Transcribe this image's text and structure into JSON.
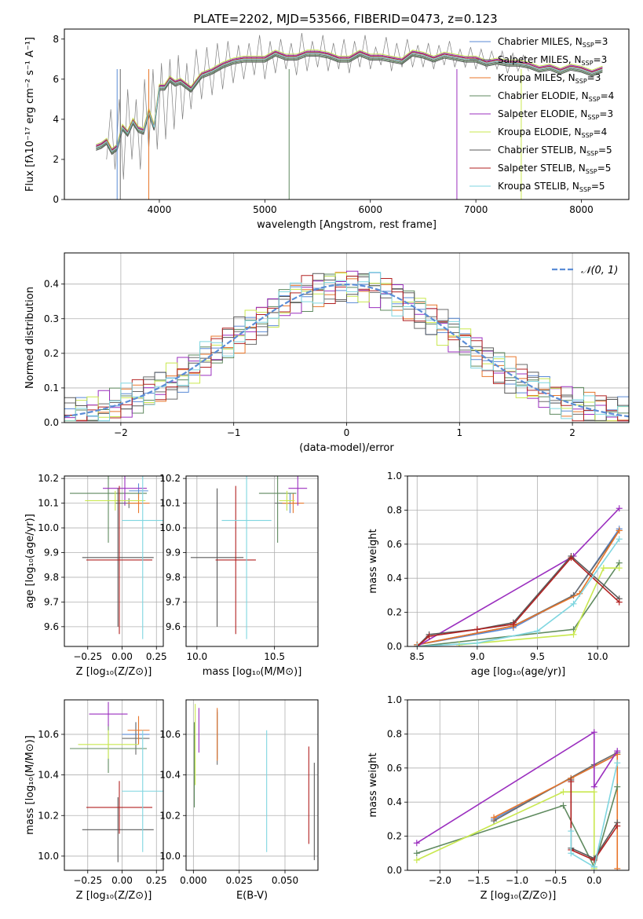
{
  "figure_title": "PLATE=2202, MJD=53566, FIBERID=0473, z=0.123",
  "colors": {
    "Chabrier MILES": "#5a8ad6",
    "Salpeter MILES": "#6b6b6b",
    "Kroupa MILES": "#e8762a",
    "Chabrier ELODIE": "#5f8a5f",
    "Salpeter ELODIE": "#9b2fbf",
    "Kroupa ELODIE": "#c9e84f",
    "Chabrier STELIB": "#5a5a5a",
    "Salpeter STELIB": "#b22222",
    "Kroupa STELIB": "#7fd6e0",
    "normal": "#5b8dd6",
    "grid": "#b0b0b0"
  },
  "chart_data": [
    {
      "id": "spectrum",
      "type": "line",
      "xlabel": "wavelength [Angstrom, rest frame]",
      "ylabel": "Flux [fλ10⁻¹⁷ erg cm⁻² s⁻¹ A⁻¹]",
      "xlim": [
        3100,
        8450
      ],
      "ylim": [
        0,
        8.5
      ],
      "xticks": [
        "4000",
        "5000",
        "6000",
        "7000",
        "8000"
      ],
      "yticks": [
        "0",
        "2",
        "4",
        "6",
        "8"
      ],
      "grid": false,
      "legend_position": "right",
      "data_x": [
        3400,
        3450,
        3500,
        3550,
        3600,
        3650,
        3700,
        3750,
        3800,
        3850,
        3900,
        3950,
        4000,
        4050,
        4100,
        4150,
        4200,
        4250,
        4300,
        4400,
        4500,
        4600,
        4700,
        4800,
        4900,
        5000,
        5100,
        5200,
        5300,
        5400,
        5500,
        5600,
        5700,
        5800,
        5900,
        6000,
        6100,
        6200,
        6300,
        6400,
        6500,
        6600,
        6700,
        6800,
        6900,
        7000,
        7100,
        7200,
        7300,
        7400,
        7500,
        7600,
        7700,
        7800,
        7900,
        8000,
        8100,
        8200
      ],
      "data_y": [
        2.6,
        2.7,
        2.9,
        2.4,
        2.6,
        3.6,
        3.3,
        3.9,
        3.5,
        3.4,
        4.4,
        3.6,
        5.6,
        5.6,
        6.0,
        5.8,
        5.9,
        5.7,
        5.5,
        6.2,
        6.4,
        6.7,
        6.9,
        7.0,
        7.0,
        7.0,
        7.3,
        7.1,
        7.1,
        7.3,
        7.3,
        7.2,
        7.0,
        7.0,
        7.3,
        7.1,
        7.1,
        7.0,
        6.9,
        7.3,
        7.2,
        7.0,
        7.2,
        7.1,
        7.0,
        7.0,
        6.8,
        6.9,
        6.8,
        6.8,
        6.7,
        6.5,
        6.6,
        6.4,
        6.6,
        6.5,
        6.3,
        6.5
      ],
      "noise_x": [
        3500,
        3540,
        3580,
        3620,
        3660,
        3700,
        3740,
        3780,
        3820,
        3860,
        3900,
        3940,
        3980,
        4020,
        4060,
        4100,
        4140,
        4180,
        4220,
        4260,
        4300,
        4350,
        4400,
        4450,
        4500,
        4550,
        4600,
        4650,
        4700,
        4750,
        4800,
        4850,
        4900,
        4950,
        5000,
        5050,
        5100,
        5150,
        5200,
        5250,
        5300,
        5350,
        5400,
        5450,
        5500,
        5550,
        5600,
        5650,
        5700,
        5750,
        5800,
        5850,
        5900,
        5950,
        6000,
        6050,
        6100,
        6150,
        6200,
        6250,
        6300,
        6350,
        6400,
        6450,
        6500,
        6550,
        6600,
        6650,
        6700,
        6750,
        6800,
        6850,
        6900,
        6950,
        7000,
        7050,
        7100,
        7150,
        7200,
        7250,
        7300,
        7350,
        7400,
        7450,
        7500
      ],
      "noise_y": [
        2.0,
        4.5,
        1.5,
        5.0,
        1.0,
        5.5,
        2.0,
        5.0,
        1.5,
        6.0,
        2.5,
        6.5,
        2.5,
        6.8,
        3.0,
        7.0,
        3.5,
        7.2,
        4.0,
        6.8,
        4.5,
        7.5,
        5.0,
        7.6,
        5.2,
        7.8,
        5.5,
        7.9,
        5.8,
        7.7,
        6.0,
        7.8,
        6.2,
        8.2,
        6.0,
        7.9,
        6.3,
        8.0,
        6.5,
        7.8,
        6.2,
        8.3,
        6.4,
        7.9,
        6.6,
        8.2,
        6.4,
        7.8,
        6.5,
        8.0,
        6.3,
        7.9,
        6.6,
        8.2,
        6.5,
        7.6,
        6.7,
        8.1,
        6.4,
        7.8,
        6.6,
        8.0,
        6.6,
        7.7,
        6.6,
        7.8,
        6.5,
        7.7,
        6.7,
        7.9,
        6.6,
        7.5,
        6.6,
        7.6,
        6.5,
        7.5,
        6.5,
        7.4,
        6.5,
        7.4,
        6.3,
        7.3,
        6.4,
        7.2,
        6.4
      ],
      "glitch_x": [
        3600,
        3630,
        3900,
        5230,
        6820,
        7430
      ],
      "series": [
        {
          "name": "Chabrier MILES, N_SSP=3",
          "color_key": "Chabrier MILES",
          "offset": 0.05
        },
        {
          "name": "Salpeter MILES, N_SSP=3",
          "color_key": "Salpeter MILES",
          "offset": -0.05
        },
        {
          "name": "Kroupa MILES, N_SSP=3",
          "color_key": "Kroupa MILES",
          "offset": 0.0
        },
        {
          "name": "Chabrier ELODIE, N_SSP=4",
          "color_key": "Chabrier ELODIE",
          "offset": -0.1
        },
        {
          "name": "Salpeter ELODIE, N_SSP=3",
          "color_key": "Salpeter ELODIE",
          "offset": 0.1
        },
        {
          "name": "Kroupa ELODIE, N_SSP=4",
          "color_key": "Kroupa ELODIE",
          "offset": 0.15
        },
        {
          "name": "Chabrier STELIB, N_SSP=5",
          "color_key": "Chabrier STELIB",
          "offset": -0.15
        },
        {
          "name": "Salpeter STELIB, N_SSP=5",
          "color_key": "Salpeter STELIB",
          "offset": 0.05
        },
        {
          "name": "Kroupa STELIB, N_SSP=5",
          "color_key": "Kroupa STELIB",
          "offset": 0.0
        }
      ]
    },
    {
      "id": "residuals",
      "type": "bar",
      "xlabel": "(data-model)/error",
      "ylabel": "Normed distribution",
      "xlim": [
        -2.5,
        2.5
      ],
      "ylim": [
        0,
        0.49
      ],
      "xticks": [
        "−2",
        "−1",
        "0",
        "1",
        "2"
      ],
      "yticks": [
        "0.0",
        "0.1",
        "0.2",
        "0.3",
        "0.4"
      ],
      "grid": true,
      "legend_position": "top-right",
      "legend_label": "𝒩(0, 1)",
      "bin_width": 0.1,
      "bin_start": -2.5
    },
    {
      "id": "age-vs-Z",
      "type": "scatter",
      "xlabel": "Z [log₁₀(Z/Z⊙)]",
      "ylabel": "age  [log₁₀(age/yr)]",
      "xlim": [
        -0.42,
        0.3
      ],
      "ylim": [
        9.52,
        10.21
      ],
      "xticks": [
        "−0.25",
        "0.00",
        "0.25"
      ],
      "yticks": [
        "9.6",
        "9.7",
        "9.8",
        "9.9",
        "10.0",
        "10.1",
        "10.2"
      ],
      "grid": true,
      "points": [
        {
          "c": "Chabrier MILES",
          "x": 0.12,
          "xe": 0.07,
          "y": 10.15,
          "ye": 0.03
        },
        {
          "c": "Salpeter MILES",
          "x": 0.05,
          "xe": 0.1,
          "y": 10.1,
          "ye": 0.02
        },
        {
          "c": "Kroupa MILES",
          "x": 0.12,
          "xe": 0.08,
          "y": 10.1,
          "ye": 0.04
        },
        {
          "c": "Chabrier ELODIE",
          "x": -0.1,
          "xe": 0.28,
          "y": 10.14,
          "ye": 0.2
        },
        {
          "c": "Salpeter ELODIE",
          "x": 0.02,
          "xe": 0.16,
          "y": 10.16,
          "ye": 0.07
        },
        {
          "c": "Kroupa ELODIE",
          "x": -0.05,
          "xe": 0.22,
          "y": 10.11,
          "ye": 0.04
        },
        {
          "c": "Chabrier STELIB",
          "x": -0.03,
          "xe": 0.26,
          "y": 9.88,
          "ye": 0.28
        },
        {
          "c": "Salpeter STELIB",
          "x": -0.02,
          "xe": 0.24,
          "y": 9.87,
          "ye": 0.3
        },
        {
          "c": "Kroupa STELIB",
          "x": 0.15,
          "xe": 0.15,
          "y": 10.03,
          "ye": 0.48
        }
      ]
    },
    {
      "id": "age-vs-mass",
      "type": "scatter",
      "xlabel": "mass [log₁₀(M/M⊙)]",
      "ylabel": "",
      "xlim": [
        9.93,
        10.78
      ],
      "ylim": [
        9.52,
        10.21
      ],
      "xticks": [
        "10.0",
        "10.5"
      ],
      "yticks": [
        "9.6",
        "9.7",
        "9.8",
        "9.9",
        "10.0",
        "10.1",
        "10.2"
      ],
      "grid": true,
      "points": [
        {
          "c": "Chabrier MILES",
          "x": 10.6,
          "xe": 0.06,
          "y": 10.1,
          "ye": 0.04
        },
        {
          "c": "Salpeter MILES",
          "x": 10.58,
          "xe": 0.08,
          "y": 10.1,
          "ye": 0.03
        },
        {
          "c": "Kroupa MILES",
          "x": 10.62,
          "xe": 0.07,
          "y": 10.1,
          "ye": 0.04
        },
        {
          "c": "Chabrier ELODIE",
          "x": 10.52,
          "xe": 0.12,
          "y": 10.14,
          "ye": 0.2
        },
        {
          "c": "Salpeter ELODIE",
          "x": 10.65,
          "xe": 0.06,
          "y": 10.16,
          "ye": 0.07
        },
        {
          "c": "Kroupa ELODIE",
          "x": 10.58,
          "xe": 0.05,
          "y": 10.11,
          "ye": 0.04
        },
        {
          "c": "Chabrier STELIB",
          "x": 10.13,
          "xe": 0.17,
          "y": 9.88,
          "ye": 0.28
        },
        {
          "c": "Salpeter STELIB",
          "x": 10.25,
          "xe": 0.13,
          "y": 9.87,
          "ye": 0.3
        },
        {
          "c": "Kroupa STELIB",
          "x": 10.32,
          "xe": 0.16,
          "y": 10.03,
          "ye": 0.48
        }
      ]
    },
    {
      "id": "mass-weight-vs-age",
      "type": "line",
      "xlabel": "age  [log₁₀(age/yr)]",
      "ylabel": "mass weight",
      "xlim": [
        8.42,
        10.26
      ],
      "ylim": [
        0,
        1
      ],
      "xticks": [
        "8.5",
        "9.0",
        "9.5",
        "10.0"
      ],
      "yticks": [
        "0.0",
        "0.2",
        "0.4",
        "0.6",
        "0.8",
        "1.0"
      ],
      "grid": true,
      "series": [
        {
          "c": "Chabrier MILES",
          "x": [
            8.5,
            9.3,
            9.8,
            10.18
          ],
          "y": [
            0.01,
            0.11,
            0.3,
            0.69
          ]
        },
        {
          "c": "Salpeter MILES",
          "x": [
            8.5,
            9.3,
            9.8,
            10.18
          ],
          "y": [
            0.01,
            0.12,
            0.3,
            0.68
          ]
        },
        {
          "c": "Kroupa MILES",
          "x": [
            8.5,
            9.3,
            9.85,
            10.18
          ],
          "y": [
            0.01,
            0.12,
            0.31,
            0.68
          ]
        },
        {
          "c": "Chabrier ELODIE",
          "x": [
            8.5,
            9.8,
            10.18
          ],
          "y": [
            0.0,
            0.1,
            0.49
          ]
        },
        {
          "c": "Salpeter ELODIE",
          "x": [
            8.5,
            9.8,
            10.18
          ],
          "y": [
            0.0,
            0.53,
            0.81
          ]
        },
        {
          "c": "Kroupa ELODIE",
          "x": [
            8.85,
            9.8,
            10.05,
            10.18
          ],
          "y": [
            0.01,
            0.07,
            0.46,
            0.46
          ]
        },
        {
          "c": "Chabrier STELIB",
          "x": [
            8.5,
            8.6,
            9.0,
            9.3,
            9.78,
            10.18
          ],
          "y": [
            0.0,
            0.07,
            0.1,
            0.14,
            0.53,
            0.28
          ]
        },
        {
          "c": "Salpeter STELIB",
          "x": [
            8.5,
            8.6,
            9.0,
            9.3,
            9.78,
            10.18
          ],
          "y": [
            0.0,
            0.06,
            0.1,
            0.13,
            0.52,
            0.26
          ]
        },
        {
          "c": "Kroupa STELIB",
          "x": [
            8.5,
            9.0,
            9.5,
            9.8,
            10.18
          ],
          "y": [
            0.0,
            0.02,
            0.09,
            0.25,
            0.63
          ]
        }
      ]
    },
    {
      "id": "mass-vs-Z",
      "type": "scatter",
      "xlabel": "Z [log₁₀(Z/Z⊙)]",
      "ylabel": "mass [log₁₀(M/M⊙)]",
      "xlim": [
        -0.42,
        0.3
      ],
      "ylim": [
        9.93,
        10.77
      ],
      "xticks": [
        "−0.25",
        "0.00",
        "0.25"
      ],
      "yticks": [
        "10.0",
        "10.2",
        "10.4",
        "10.6"
      ],
      "grid": true,
      "points": [
        {
          "c": "Chabrier MILES",
          "x": 0.1,
          "xe": 0.1,
          "y": 10.6,
          "ye": 0.06
        },
        {
          "c": "Salpeter MILES",
          "x": 0.1,
          "xe": 0.1,
          "y": 10.58,
          "ye": 0.08
        },
        {
          "c": "Kroupa MILES",
          "x": 0.12,
          "xe": 0.08,
          "y": 10.62,
          "ye": 0.07
        },
        {
          "c": "Chabrier ELODIE",
          "x": -0.1,
          "xe": 0.28,
          "y": 10.53,
          "ye": 0.12
        },
        {
          "c": "Salpeter ELODIE",
          "x": -0.1,
          "xe": 0.14,
          "y": 10.7,
          "ye": 0.06
        },
        {
          "c": "Kroupa ELODIE",
          "x": -0.1,
          "xe": 0.22,
          "y": 10.55,
          "ye": 0.07
        },
        {
          "c": "Chabrier STELIB",
          "x": -0.03,
          "xe": 0.26,
          "y": 10.13,
          "ye": 0.16
        },
        {
          "c": "Salpeter STELIB",
          "x": -0.02,
          "xe": 0.24,
          "y": 10.24,
          "ye": 0.13
        },
        {
          "c": "Kroupa STELIB",
          "x": 0.15,
          "xe": 0.15,
          "y": 10.32,
          "ye": 0.3
        }
      ]
    },
    {
      "id": "mass-vs-EBV",
      "type": "scatter",
      "xlabel": "E(B-V)",
      "ylabel": "",
      "xlim": [
        -0.004,
        0.068
      ],
      "ylim": [
        9.93,
        10.77
      ],
      "xticks": [
        "0.000",
        "0.025",
        "0.050"
      ],
      "yticks": [
        "10.0",
        "10.2",
        "10.4",
        "10.6"
      ],
      "grid": true,
      "points": [
        {
          "c": "Chabrier MILES",
          "x": 0.013,
          "xe": 0,
          "y": 10.6,
          "ye": 0.12
        },
        {
          "c": "Salpeter MILES",
          "x": 0.013,
          "xe": 0,
          "y": 10.58,
          "ye": 0.13
        },
        {
          "c": "Kroupa MILES",
          "x": 0.013,
          "xe": 0,
          "y": 10.6,
          "ye": 0.13
        },
        {
          "c": "Chabrier ELODIE",
          "x": 0.0005,
          "xe": 0,
          "y": 10.45,
          "ye": 0.21
        },
        {
          "c": "Salpeter ELODIE",
          "x": 0.003,
          "xe": 0,
          "y": 10.62,
          "ye": 0.11
        },
        {
          "c": "Kroupa ELODIE",
          "x": 0.001,
          "xe": 0,
          "y": 10.55,
          "ye": 0.2
        },
        {
          "c": "Chabrier STELIB",
          "x": 0.066,
          "xe": 0,
          "y": 10.22,
          "ye": 0.24
        },
        {
          "c": "Salpeter STELIB",
          "x": 0.063,
          "xe": 0,
          "y": 10.3,
          "ye": 0.24
        },
        {
          "c": "Kroupa STELIB",
          "x": 0.04,
          "xe": 0,
          "y": 10.32,
          "ye": 0.3
        }
      ]
    },
    {
      "id": "mass-weight-vs-Z",
      "type": "line",
      "xlabel": "Z [log₁₀(Z/Z⊙)]",
      "ylabel": "mass weight",
      "xlim": [
        -2.42,
        0.45
      ],
      "ylim": [
        0,
        1
      ],
      "xticks": [
        "−2.0",
        "−1.5",
        "−1.0",
        "−0.5",
        "0.0"
      ],
      "yticks": [
        "0.0",
        "0.2",
        "0.4",
        "0.6",
        "0.8",
        "1.0"
      ],
      "grid": true,
      "series": [
        {
          "c": "Chabrier MILES",
          "x": [
            -1.3,
            -0.3,
            0.3
          ],
          "y": [
            0.3,
            0.54,
            0.68
          ]
        },
        {
          "c": "Salpeter MILES",
          "x": [
            -1.3,
            0.0,
            0.3
          ],
          "y": [
            0.29,
            0.62,
            0.69
          ]
        },
        {
          "c": "Kroupa MILES",
          "x": [
            -1.3,
            -0.3,
            0.3,
            0.3
          ],
          "y": [
            0.31,
            0.54,
            0.68,
            0.01
          ]
        },
        {
          "c": "Chabrier ELODIE",
          "x": [
            -2.3,
            -0.4,
            0.0,
            0.3
          ],
          "y": [
            0.1,
            0.38,
            0.02,
            0.49
          ]
        },
        {
          "c": "Salpeter ELODIE",
          "x": [
            -2.3,
            0.0,
            0.0,
            0.3
          ],
          "y": [
            0.16,
            0.81,
            0.49,
            0.7
          ]
        },
        {
          "c": "Kroupa ELODIE",
          "x": [
            -2.3,
            -0.4,
            0.0,
            0.0
          ],
          "y": [
            0.06,
            0.46,
            0.46,
            0.01
          ]
        },
        {
          "c": "Chabrier STELIB",
          "x": [
            -0.3,
            -0.3,
            0.0,
            0.3
          ],
          "y": [
            0.53,
            0.13,
            0.07,
            0.28
          ]
        },
        {
          "c": "Salpeter STELIB",
          "x": [
            -0.3,
            -0.3,
            0.0,
            0.3
          ],
          "y": [
            0.52,
            0.12,
            0.06,
            0.26
          ]
        },
        {
          "c": "Kroupa STELIB",
          "x": [
            -0.3,
            -0.3,
            0.0,
            0.3
          ],
          "y": [
            0.23,
            0.1,
            0.02,
            0.63
          ]
        }
      ]
    }
  ]
}
